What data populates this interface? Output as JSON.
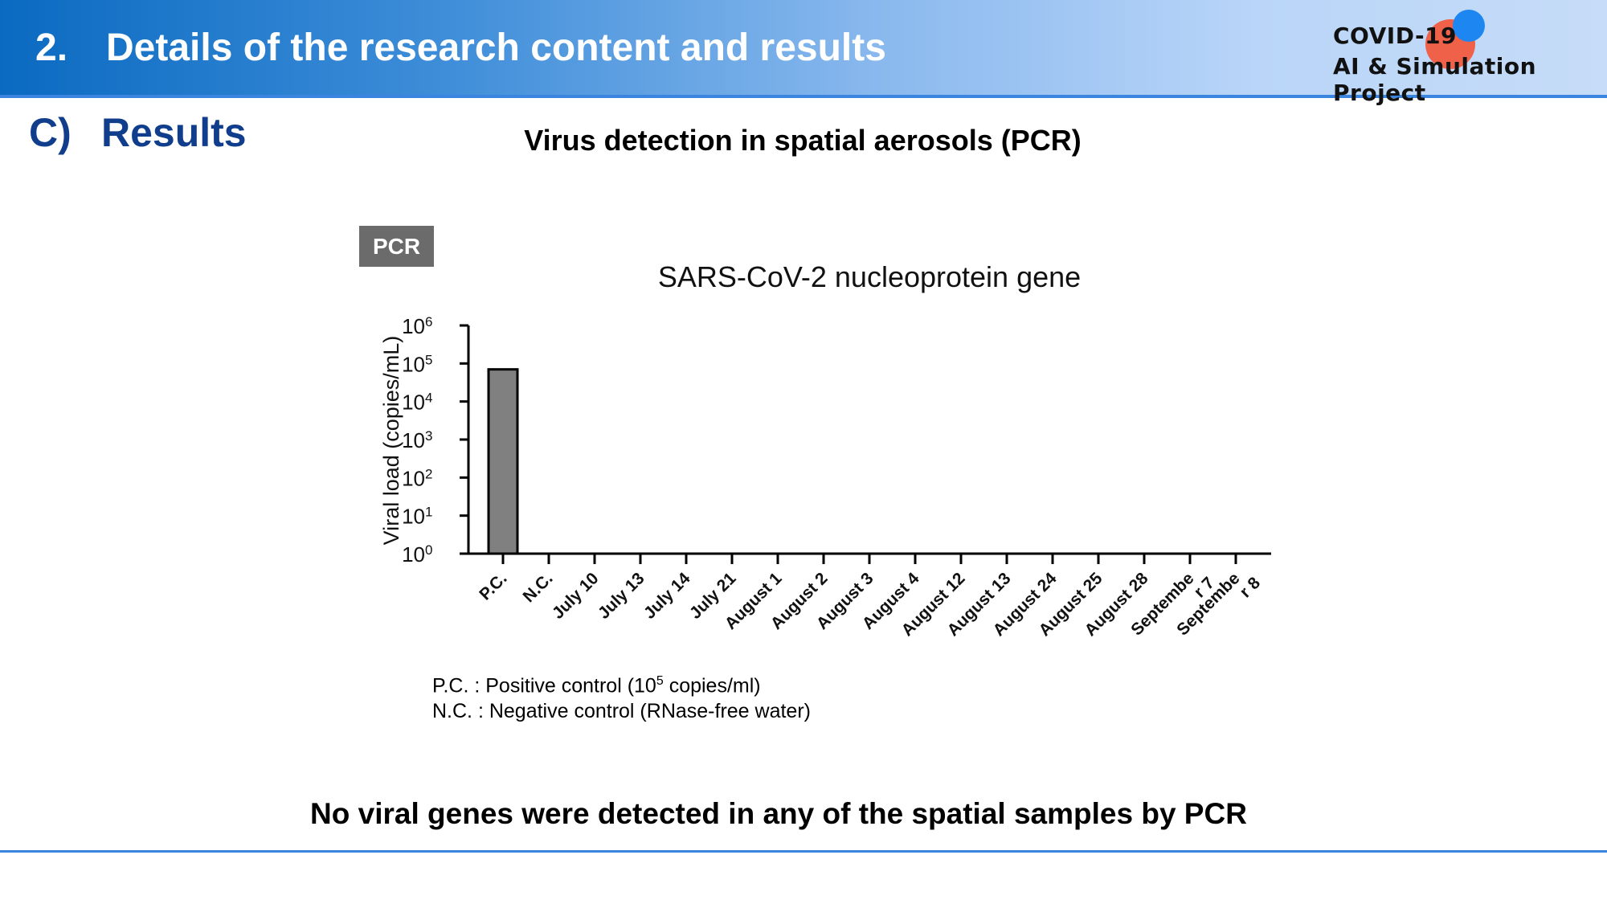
{
  "header": {
    "number": "2.",
    "title": "Details of the research content and results",
    "logo_line1": "COVID-19",
    "logo_line2": "AI & Simulation Project"
  },
  "section": {
    "label": "C)",
    "title": "Results"
  },
  "chart_caption": "Virus detection in spatial aerosols (PCR)",
  "badge": "PCR",
  "chart_data": {
    "type": "bar",
    "title": "SARS-CoV-2 nucleoprotein gene",
    "xlabel": "",
    "ylabel": "Viral load (copies/mL)",
    "yscale": "log",
    "ylim": [
      1,
      1000000
    ],
    "yticks": [
      {
        "base": "10",
        "exp": "0"
      },
      {
        "base": "10",
        "exp": "1"
      },
      {
        "base": "10",
        "exp": "2"
      },
      {
        "base": "10",
        "exp": "3"
      },
      {
        "base": "10",
        "exp": "4"
      },
      {
        "base": "10",
        "exp": "5"
      },
      {
        "base": "10",
        "exp": "6"
      }
    ],
    "categories": [
      [
        "P.C."
      ],
      [
        "N.C."
      ],
      [
        "July 10"
      ],
      [
        "July 13"
      ],
      [
        "July 14"
      ],
      [
        "July 21"
      ],
      [
        "August 1"
      ],
      [
        "August 2"
      ],
      [
        "August 3"
      ],
      [
        "August 4"
      ],
      [
        "August 12"
      ],
      [
        "August 13"
      ],
      [
        "August 24"
      ],
      [
        "August 25"
      ],
      [
        "August 28"
      ],
      [
        "Septembe",
        "r 7"
      ],
      [
        "Septembe",
        "r 8"
      ]
    ],
    "values": [
      70000,
      0,
      0,
      0,
      0,
      0,
      0,
      0,
      0,
      0,
      0,
      0,
      0,
      0,
      0,
      0,
      0
    ],
    "bar_color": "#808080",
    "grid": false,
    "legend": "none"
  },
  "notes": {
    "pc_prefix": "P.C. : Positive control (10",
    "pc_sup": "5",
    "pc_suffix": " copies/ml)",
    "nc": "N.C. : Negative control (RNase-free water)"
  },
  "conclusion": "No viral genes were detected in any of the spatial samples by PCR"
}
